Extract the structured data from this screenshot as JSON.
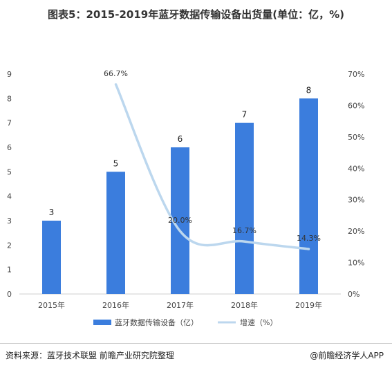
{
  "title": "图表5：2015-2019年蓝牙数据传输设备出货量(单位：亿，%)",
  "source": "资料来源：蓝牙技术联盟 前瞻产业研究院整理",
  "brand": "@前瞻经济学人APP",
  "colors": {
    "bar": "#3b7ddd",
    "line": "#bcd7ee",
    "axis": "#cfcfcf",
    "text": "#444444"
  },
  "chart_data": {
    "type": "bar",
    "categories": [
      "2015年",
      "2016年",
      "2017年",
      "2018年",
      "2019年"
    ],
    "series": [
      {
        "name": "蓝牙数据传输设备（亿）",
        "type": "bar",
        "axis": "left",
        "values": [
          3,
          5,
          6,
          7,
          8
        ],
        "labels": [
          "3",
          "5",
          "6",
          "7",
          "8"
        ]
      },
      {
        "name": "增速（%）",
        "type": "line",
        "axis": "right",
        "values": [
          null,
          66.7,
          20.0,
          16.7,
          14.3
        ],
        "labels": [
          "",
          "66.7%",
          "20.0%",
          "16.7%",
          "14.3%"
        ]
      }
    ],
    "y_left": {
      "min": 0,
      "max": 9,
      "ticks": [
        "0",
        "1",
        "2",
        "3",
        "4",
        "5",
        "6",
        "7",
        "8",
        "9"
      ]
    },
    "y_right": {
      "min": 0,
      "max": 70,
      "ticks": [
        "0%",
        "10%",
        "20%",
        "30%",
        "40%",
        "50%",
        "60%",
        "70%"
      ]
    },
    "legend_position": "bottom",
    "grid": false
  }
}
